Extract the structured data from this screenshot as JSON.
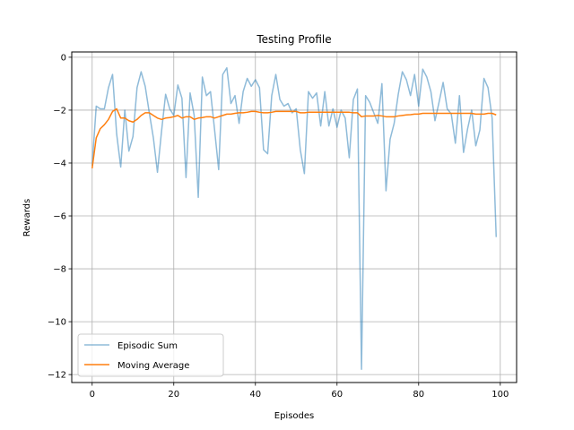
{
  "chart_data": {
    "type": "line",
    "title": "Testing Profile",
    "xlabel": "Episodes",
    "ylabel": "Rewards",
    "xlim": [
      -5,
      104
    ],
    "ylim": [
      -12.3,
      0.2
    ],
    "xticks": [
      0,
      20,
      40,
      60,
      80,
      100
    ],
    "yticks": [
      0,
      -2,
      -4,
      -6,
      -8,
      -10,
      -12
    ],
    "grid": true,
    "legend_position": "lower-left",
    "x": [
      0,
      1,
      2,
      3,
      4,
      5,
      6,
      7,
      8,
      9,
      10,
      11,
      12,
      13,
      14,
      15,
      16,
      17,
      18,
      19,
      20,
      21,
      22,
      23,
      24,
      25,
      26,
      27,
      28,
      29,
      30,
      31,
      32,
      33,
      34,
      35,
      36,
      37,
      38,
      39,
      40,
      41,
      42,
      43,
      44,
      45,
      46,
      47,
      48,
      49,
      50,
      51,
      52,
      53,
      54,
      55,
      56,
      57,
      58,
      59,
      60,
      61,
      62,
      63,
      64,
      65,
      66,
      67,
      68,
      69,
      70,
      71,
      72,
      73,
      74,
      75,
      76,
      77,
      78,
      79,
      80,
      81,
      82,
      83,
      84,
      85,
      86,
      87,
      88,
      89,
      90,
      91,
      92,
      93,
      94,
      95,
      96,
      97,
      98,
      99
    ],
    "series": [
      {
        "name": "Episodic Sum",
        "color": "#1f77b4",
        "alpha": 0.5,
        "values": [
          -4.1,
          -1.85,
          -1.95,
          -1.95,
          -1.15,
          -0.65,
          -2.9,
          -4.15,
          -2.0,
          -3.55,
          -3.0,
          -1.15,
          -0.55,
          -1.1,
          -2.1,
          -3.05,
          -4.35,
          -2.8,
          -1.4,
          -1.95,
          -2.2,
          -1.05,
          -1.55,
          -4.55,
          -1.35,
          -2.2,
          -5.3,
          -0.75,
          -1.45,
          -1.3,
          -2.75,
          -4.25,
          -0.65,
          -0.4,
          -1.75,
          -1.45,
          -2.5,
          -1.3,
          -0.8,
          -1.1,
          -0.85,
          -1.15,
          -3.5,
          -3.65,
          -1.45,
          -0.65,
          -1.6,
          -1.85,
          -1.75,
          -2.1,
          -1.95,
          -3.5,
          -4.4,
          -1.3,
          -1.55,
          -1.35,
          -2.6,
          -1.3,
          -2.6,
          -1.95,
          -2.65,
          -2.0,
          -2.3,
          -3.8,
          -1.6,
          -1.2,
          -11.8,
          -1.45,
          -1.7,
          -2.1,
          -2.5,
          -1.0,
          -5.05,
          -3.1,
          -2.5,
          -1.4,
          -0.55,
          -0.85,
          -1.45,
          -0.65,
          -1.85,
          -0.45,
          -0.75,
          -1.3,
          -2.4,
          -1.7,
          -0.95,
          -1.95,
          -2.15,
          -3.25,
          -1.45,
          -3.6,
          -2.7,
          -2.0,
          -3.35,
          -2.75,
          -0.8,
          -1.15,
          -2.3,
          -6.8
        ]
      },
      {
        "name": "Moving Average",
        "color": "#ff7f0e",
        "alpha": 1.0,
        "values": [
          -4.2,
          -3.05,
          -2.7,
          -2.55,
          -2.35,
          -2.05,
          -1.95,
          -2.3,
          -2.3,
          -2.4,
          -2.45,
          -2.35,
          -2.2,
          -2.1,
          -2.1,
          -2.2,
          -2.3,
          -2.35,
          -2.3,
          -2.28,
          -2.25,
          -2.2,
          -2.3,
          -2.25,
          -2.25,
          -2.35,
          -2.3,
          -2.28,
          -2.25,
          -2.25,
          -2.3,
          -2.25,
          -2.2,
          -2.15,
          -2.15,
          -2.12,
          -2.1,
          -2.1,
          -2.08,
          -2.05,
          -2.05,
          -2.08,
          -2.1,
          -2.1,
          -2.08,
          -2.05,
          -2.05,
          -2.05,
          -2.05,
          -2.05,
          -2.05,
          -2.1,
          -2.1,
          -2.08,
          -2.08,
          -2.08,
          -2.08,
          -2.08,
          -2.08,
          -2.08,
          -2.08,
          -2.08,
          -2.08,
          -2.08,
          -2.1,
          -2.1,
          -2.25,
          -2.22,
          -2.22,
          -2.22,
          -2.2,
          -2.22,
          -2.25,
          -2.25,
          -2.25,
          -2.22,
          -2.2,
          -2.18,
          -2.17,
          -2.15,
          -2.15,
          -2.12,
          -2.12,
          -2.12,
          -2.12,
          -2.12,
          -2.12,
          -2.12,
          -2.12,
          -2.12,
          -2.12,
          -2.12,
          -2.12,
          -2.12,
          -2.15,
          -2.15,
          -2.15,
          -2.12,
          -2.12,
          -2.18
        ]
      }
    ]
  }
}
